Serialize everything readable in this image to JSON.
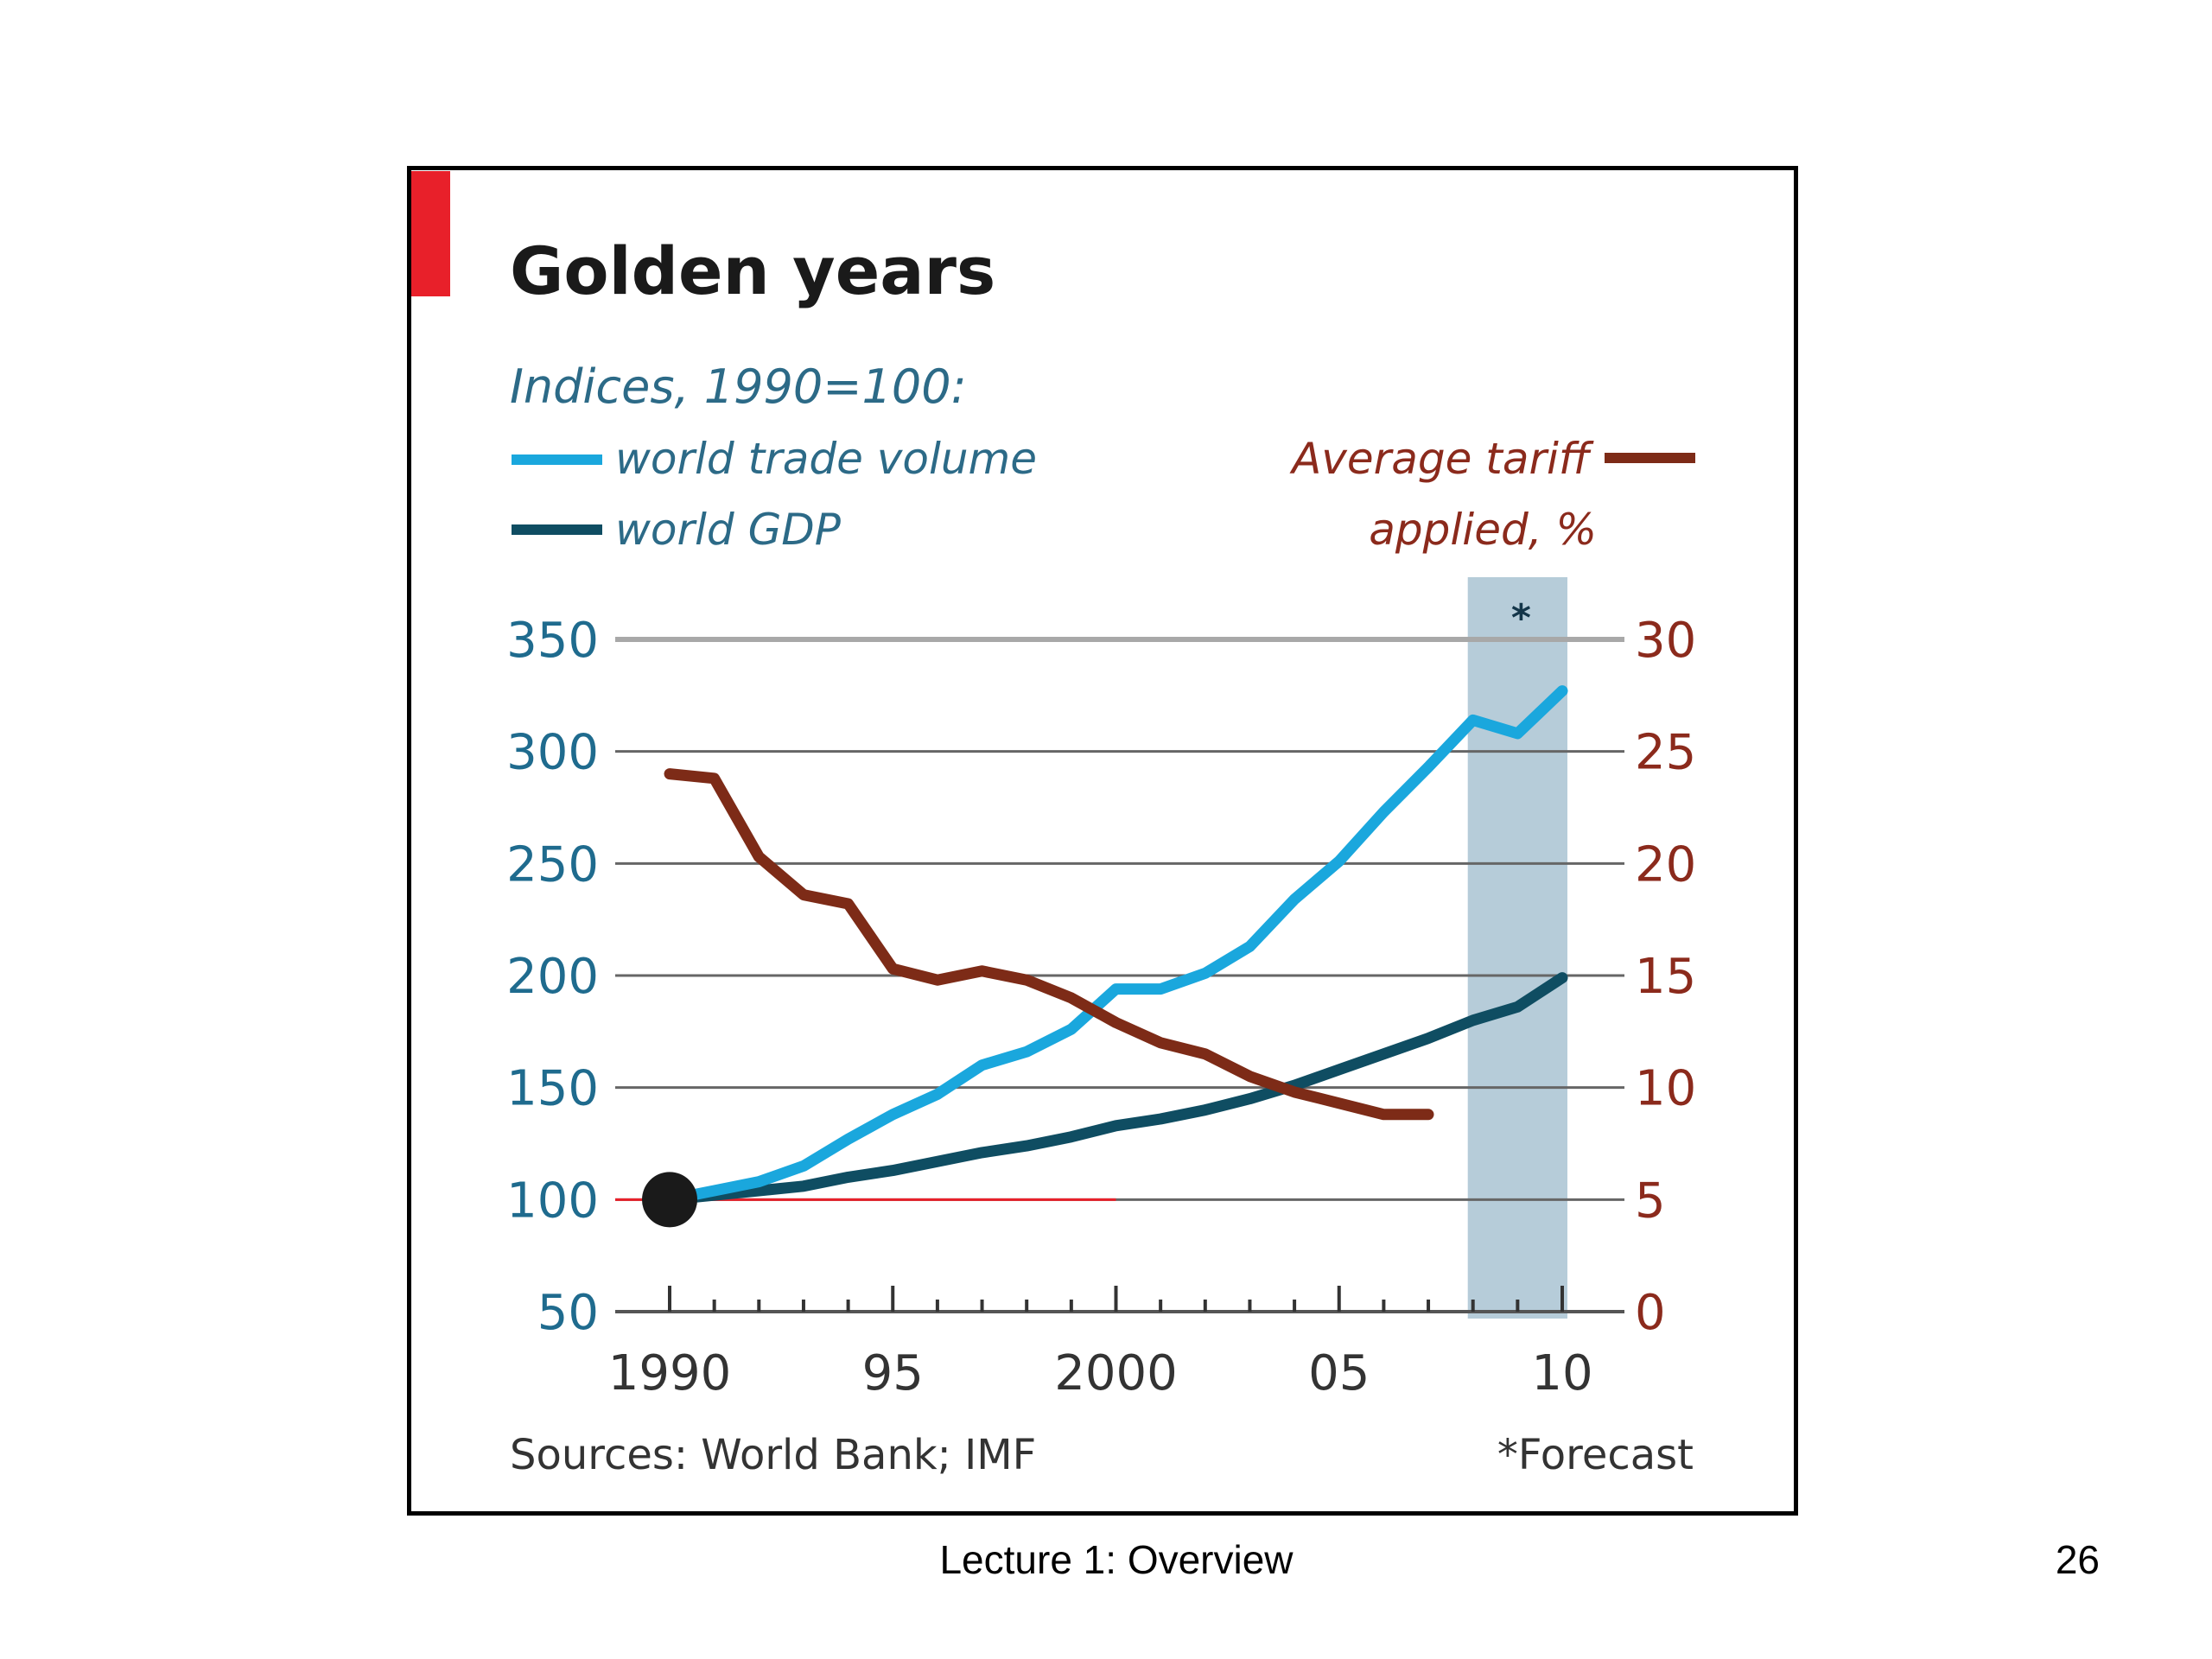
{
  "slide": {
    "footer_title": "Lecture 1:  Overview",
    "slide_number": "26"
  },
  "chart_data": {
    "type": "line",
    "title": "Golden years",
    "subtitle": "Indices, 1990=100:",
    "source": "Sources: World Bank; IMF",
    "note": "*Forecast",
    "forecast_marker": "*",
    "forecast_range": [
      2008,
      2010
    ],
    "accent_color": "#e8202a",
    "left_axis": {
      "ylim": [
        50,
        350
      ],
      "ticks": [
        350,
        300,
        250,
        200,
        150,
        100,
        50
      ]
    },
    "right_axis": {
      "label_line1": "Average tariff",
      "label_line2": "applied, %",
      "ylim": [
        0,
        30
      ],
      "ticks": [
        30,
        25,
        20,
        15,
        10,
        5,
        0
      ]
    },
    "x_axis": {
      "range": [
        1990,
        2010
      ],
      "tick_labels": [
        {
          "x": 1990,
          "label": "1990"
        },
        {
          "x": 1995,
          "label": "95"
        },
        {
          "x": 2000,
          "label": "2000"
        },
        {
          "x": 2005,
          "label": "05"
        },
        {
          "x": 2010,
          "label": "10"
        }
      ]
    },
    "reference_line": {
      "y": 100,
      "x_range": [
        1990,
        2000
      ],
      "color": "#e8202a"
    },
    "start_marker": {
      "x": 1990,
      "y": 100
    },
    "series": [
      {
        "name": "world trade volume",
        "axis": "left",
        "color": "#1aa7dd",
        "points": [
          [
            1990,
            100
          ],
          [
            1991,
            104
          ],
          [
            1992,
            108
          ],
          [
            1993,
            115
          ],
          [
            1994,
            127
          ],
          [
            1995,
            138
          ],
          [
            1996,
            147
          ],
          [
            1997,
            160
          ],
          [
            1998,
            166
          ],
          [
            1999,
            176
          ],
          [
            2000,
            194
          ],
          [
            2001,
            194
          ],
          [
            2002,
            201
          ],
          [
            2003,
            213
          ],
          [
            2004,
            234
          ],
          [
            2005,
            251
          ],
          [
            2006,
            273
          ],
          [
            2007,
            293
          ],
          [
            2008,
            314
          ],
          [
            2009,
            308
          ],
          [
            2010,
            327
          ]
        ]
      },
      {
        "name": "world GDP",
        "axis": "left",
        "color": "#0f4d62",
        "points": [
          [
            1990,
            100
          ],
          [
            1991,
            102
          ],
          [
            1992,
            104
          ],
          [
            1993,
            106
          ],
          [
            1994,
            110
          ],
          [
            1995,
            113
          ],
          [
            1996,
            117
          ],
          [
            1997,
            121
          ],
          [
            1998,
            124
          ],
          [
            1999,
            128
          ],
          [
            2000,
            133
          ],
          [
            2001,
            136
          ],
          [
            2002,
            140
          ],
          [
            2003,
            145
          ],
          [
            2004,
            151
          ],
          [
            2005,
            158
          ],
          [
            2006,
            165
          ],
          [
            2007,
            172
          ],
          [
            2008,
            180
          ],
          [
            2009,
            186
          ],
          [
            2010,
            199
          ]
        ]
      },
      {
        "name": "Average tariff applied, %",
        "axis": "right",
        "color": "#7d2b17",
        "points": [
          [
            1990,
            24
          ],
          [
            1991,
            23.8
          ],
          [
            1992,
            20.3
          ],
          [
            1993,
            18.6
          ],
          [
            1994,
            18.2
          ],
          [
            1995,
            15.3
          ],
          [
            1996,
            14.8
          ],
          [
            1997,
            15.2
          ],
          [
            1998,
            14.8
          ],
          [
            1999,
            14.0
          ],
          [
            2000,
            12.9
          ],
          [
            2001,
            12.0
          ],
          [
            2002,
            11.5
          ],
          [
            2003,
            10.5
          ],
          [
            2004,
            9.8
          ],
          [
            2005,
            9.3
          ],
          [
            2006,
            8.8
          ],
          [
            2007,
            8.8
          ]
        ]
      }
    ]
  }
}
